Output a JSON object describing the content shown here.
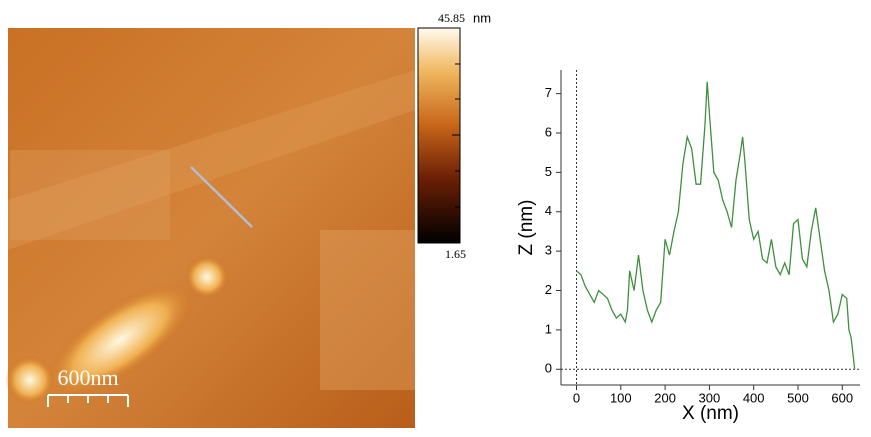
{
  "afm_image": {
    "scale_bar": "600nm",
    "colorbar": {
      "max": 45.85,
      "unit": "nm",
      "min": 1.65
    }
  },
  "chart_data": {
    "type": "line",
    "xlabel": "X (nm)",
    "ylabel": "Z (nm)",
    "x": [
      0,
      10,
      20,
      30,
      40,
      50,
      60,
      70,
      80,
      90,
      100,
      110,
      115,
      120,
      130,
      140,
      150,
      160,
      170,
      180,
      190,
      200,
      210,
      220,
      230,
      240,
      250,
      260,
      270,
      280,
      290,
      295,
      300,
      310,
      320,
      330,
      340,
      350,
      360,
      370,
      375,
      380,
      390,
      400,
      410,
      420,
      430,
      440,
      450,
      460,
      470,
      480,
      490,
      500,
      510,
      520,
      530,
      540,
      550,
      560,
      570,
      580,
      590,
      600,
      610,
      615,
      620,
      625,
      628
    ],
    "series": [
      {
        "color": "#3f8f3f",
        "values": [
          2.5,
          2.4,
          2.1,
          1.9,
          1.7,
          2.0,
          1.9,
          1.8,
          1.5,
          1.3,
          1.4,
          1.2,
          1.5,
          2.5,
          2.0,
          2.9,
          2.0,
          1.5,
          1.2,
          1.5,
          1.7,
          3.3,
          2.9,
          3.5,
          4.0,
          5.2,
          5.9,
          5.6,
          4.7,
          4.7,
          6.2,
          7.3,
          6.5,
          5.0,
          4.8,
          4.3,
          4.0,
          3.6,
          4.8,
          5.5,
          5.9,
          5.3,
          3.8,
          3.3,
          3.5,
          2.8,
          2.7,
          3.3,
          2.6,
          2.4,
          2.7,
          2.4,
          3.7,
          3.8,
          2.8,
          2.6,
          3.5,
          4.1,
          3.3,
          2.5,
          2.0,
          1.2,
          1.4,
          1.9,
          1.8,
          1.0,
          0.8,
          0.3,
          0.0
        ]
      }
    ],
    "xlim": [
      -35,
      640
    ],
    "xticks": [
      0,
      100,
      200,
      300,
      400,
      500,
      600
    ],
    "ylim": [
      -0.4,
      7.6
    ],
    "yticks": [
      0,
      1,
      2,
      3,
      4,
      5,
      6,
      7
    ]
  }
}
